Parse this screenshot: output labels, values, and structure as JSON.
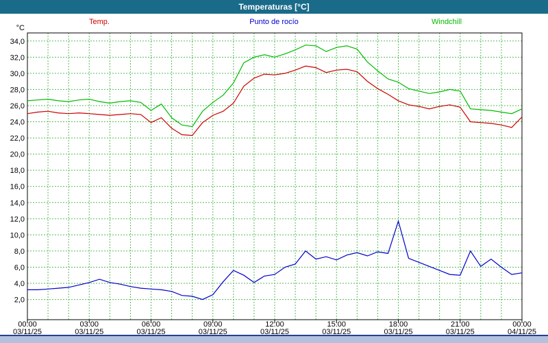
{
  "window": {
    "title": "Temperaturas [°C]"
  },
  "colors": {
    "titlebar_bg": "#1a6b8a",
    "titlebar_text": "#ffffff",
    "window_bg": "#b3c1df",
    "panel_bg": "#ffffff",
    "grid": "#55bb55",
    "axis": "#000000",
    "bottom_line": "#24408e"
  },
  "legend": [
    {
      "label": "Temp.",
      "color": "#cc0000"
    },
    {
      "label": "Punto de rocío",
      "color": "#0000cc"
    },
    {
      "label": "Windchill",
      "color": "#00bb00"
    }
  ],
  "chart_data": {
    "type": "line",
    "title": "Temperaturas [°C]",
    "xlabel": "",
    "ylabel": "°C",
    "ylim": [
      -0.5,
      35
    ],
    "grid": true,
    "legend_position": "top",
    "x_unit": "hour of day",
    "y_ticks": [
      34,
      32,
      30,
      28,
      26,
      24,
      22,
      20,
      18,
      16,
      14,
      12,
      10,
      8,
      6,
      4,
      2
    ],
    "y_tick_labels": [
      "34,0",
      "32,0",
      "30,0",
      "28,0",
      "26,0",
      "24,0",
      "22,0",
      "20,0",
      "18,0",
      "16,0",
      "14,0",
      "12,0",
      "10,0",
      "8,0",
      "6,0",
      "4,0",
      "2,0"
    ],
    "x_ticks": [
      0,
      3,
      6,
      9,
      12,
      15,
      18,
      21,
      24
    ],
    "x_tick_time_labels": [
      "00:00",
      "03:00",
      "06:00",
      "09:00",
      "12:00",
      "15:00",
      "18:00",
      "21:00",
      "00:00"
    ],
    "x_tick_date_labels": [
      "03/11/25",
      "03/11/25",
      "03/11/25",
      "03/11/25",
      "03/11/25",
      "03/11/25",
      "03/11/25",
      "03/11/25",
      "04/11/25"
    ],
    "x": [
      0,
      0.5,
      1,
      1.5,
      2,
      2.5,
      3,
      3.5,
      4,
      4.5,
      5,
      5.5,
      6,
      6.5,
      7,
      7.5,
      8,
      8.5,
      9,
      9.5,
      10,
      10.5,
      11,
      11.5,
      12,
      12.5,
      13,
      13.5,
      14,
      14.5,
      15,
      15.5,
      16,
      16.5,
      17,
      17.5,
      18,
      18.5,
      19,
      19.5,
      20,
      20.5,
      21,
      21.5,
      22,
      22.5,
      23,
      23.5,
      24
    ],
    "series": [
      {
        "name": "Temp.",
        "color": "#cc0000",
        "values": [
          25.0,
          25.2,
          25.3,
          25.1,
          25.0,
          25.1,
          25.0,
          24.9,
          24.8,
          24.9,
          25.0,
          24.9,
          23.9,
          24.5,
          23.2,
          22.4,
          22.3,
          23.9,
          24.8,
          25.3,
          26.3,
          28.4,
          29.4,
          29.9,
          29.8,
          30.0,
          30.4,
          30.9,
          30.7,
          30.1,
          30.4,
          30.5,
          30.2,
          29.0,
          28.1,
          27.4,
          26.6,
          26.1,
          25.9,
          25.6,
          25.9,
          26.1,
          25.8,
          24.0,
          23.9,
          23.8,
          23.6,
          23.3,
          24.6
        ]
      },
      {
        "name": "Punto de rocío",
        "color": "#0000cc",
        "values": [
          3.2,
          3.2,
          3.3,
          3.4,
          3.5,
          3.8,
          4.1,
          4.5,
          4.1,
          3.9,
          3.6,
          3.4,
          3.3,
          3.2,
          3.0,
          2.5,
          2.4,
          2.0,
          2.6,
          4.2,
          5.6,
          5.0,
          4.1,
          4.9,
          5.1,
          6.0,
          6.4,
          8.0,
          7.0,
          7.3,
          6.9,
          7.5,
          7.8,
          7.4,
          7.9,
          7.7,
          11.7,
          7.1,
          6.6,
          6.1,
          5.6,
          5.1,
          5.0,
          8.0,
          6.1,
          7.0,
          6.0,
          5.1,
          5.3
        ]
      },
      {
        "name": "Windchill",
        "color": "#00bb00",
        "values": [
          26.6,
          26.7,
          26.8,
          26.6,
          26.5,
          26.7,
          26.8,
          26.5,
          26.3,
          26.5,
          26.6,
          26.4,
          25.4,
          26.2,
          24.5,
          23.6,
          23.4,
          25.3,
          26.4,
          27.3,
          28.8,
          31.3,
          32.0,
          32.3,
          32.0,
          32.4,
          32.9,
          33.5,
          33.4,
          32.7,
          33.2,
          33.4,
          33.0,
          31.4,
          30.3,
          29.3,
          28.9,
          28.1,
          27.8,
          27.5,
          27.7,
          28.0,
          27.8,
          25.6,
          25.5,
          25.4,
          25.2,
          25.0,
          25.6
        ]
      }
    ]
  }
}
